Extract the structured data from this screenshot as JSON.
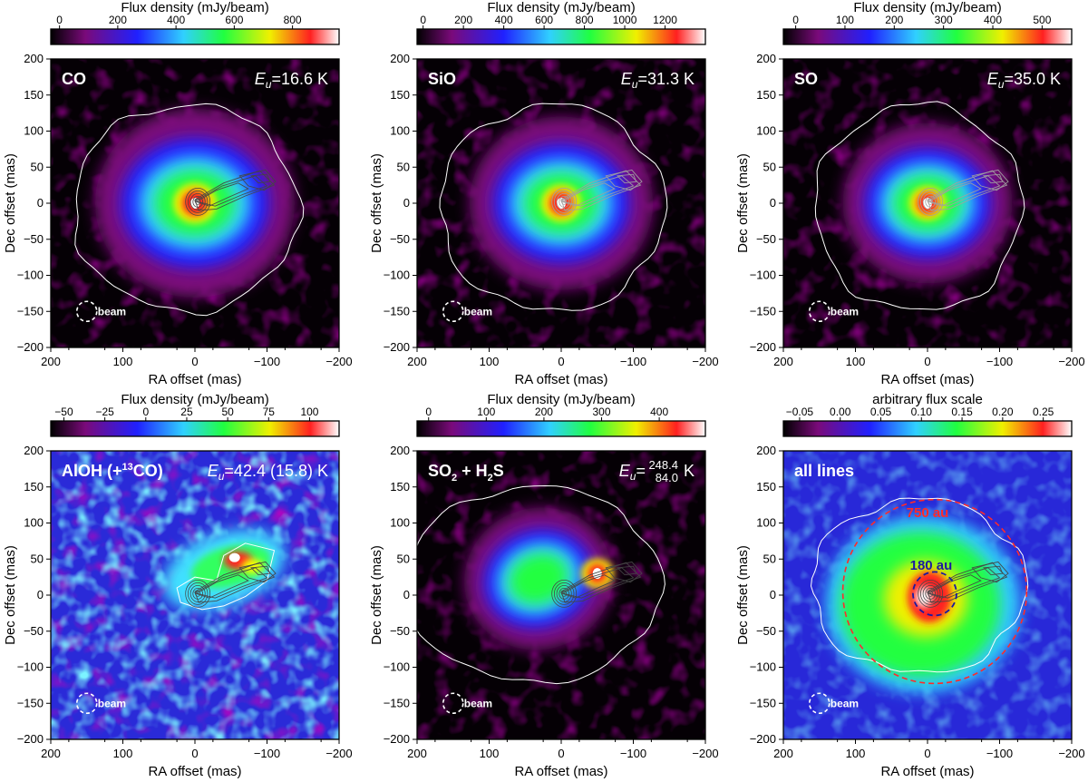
{
  "chart_data": [
    {
      "type": "heatmap",
      "title": "CO",
      "energy": "=16.6 K",
      "colorbar_label": "Flux density (mJy/beam)",
      "colorbar_ticks": [
        "0",
        "200",
        "400",
        "600",
        "800"
      ],
      "colorbar_values": [
        0,
        200,
        400,
        600,
        800
      ],
      "colorbar_range": [
        -30,
        960
      ],
      "xlabel": "RA offset (mas)",
      "ylabel": "Dec offset (mas)",
      "xlim": [
        200,
        -200
      ],
      "ylim": [
        -200,
        200
      ],
      "xticks": [
        "200",
        "100",
        "0",
        "−100",
        "−200"
      ],
      "yticks": [
        "200",
        "150",
        "100",
        "50",
        "0",
        "−50",
        "−100",
        "−150",
        "−200"
      ],
      "beam_label": "beam"
    },
    {
      "type": "heatmap",
      "title": "SiO",
      "energy": "=31.3 K",
      "colorbar_label": "Flux density (mJy/beam)",
      "colorbar_ticks": [
        "0",
        "200",
        "400",
        "600",
        "800",
        "1000",
        "1200"
      ],
      "colorbar_values": [
        0,
        200,
        400,
        600,
        800,
        1000,
        1200
      ],
      "colorbar_range": [
        -30,
        1400
      ],
      "xlabel": "RA offset (mas)",
      "ylabel": "Dec offset (mas)",
      "xlim": [
        200,
        -200
      ],
      "ylim": [
        -200,
        200
      ],
      "xticks": [
        "200",
        "100",
        "0",
        "−100",
        "−200"
      ],
      "yticks": [
        "200",
        "150",
        "100",
        "50",
        "0",
        "−50",
        "−100",
        "−150",
        "−200"
      ],
      "beam_label": "beam"
    },
    {
      "type": "heatmap",
      "title": "SO",
      "energy": "=35.0 K",
      "colorbar_label": "Flux density (mJy/beam)",
      "colorbar_ticks": [
        "0",
        "100",
        "200",
        "300",
        "400",
        "500"
      ],
      "colorbar_values": [
        0,
        100,
        200,
        300,
        400,
        500
      ],
      "colorbar_range": [
        -25,
        560
      ],
      "xlabel": "RA offset (mas)",
      "ylabel": "Dec offset (mas)",
      "xlim": [
        200,
        -200
      ],
      "ylim": [
        -200,
        200
      ],
      "xticks": [
        "200",
        "100",
        "0",
        "−100",
        "−200"
      ],
      "yticks": [
        "200",
        "150",
        "100",
        "50",
        "0",
        "−50",
        "−100",
        "−150",
        "−200"
      ],
      "beam_label": "beam"
    },
    {
      "type": "heatmap",
      "title": "AlOH (+",
      "title_sup": "13",
      "title_tail": "CO)",
      "energy": "=42.4 (15.8) K",
      "colorbar_label": "Flux density (mJy/beam)",
      "colorbar_ticks": [
        "−50",
        "−25",
        "0",
        "25",
        "50",
        "75",
        "100"
      ],
      "colorbar_values": [
        -50,
        -25,
        0,
        25,
        50,
        75,
        100
      ],
      "colorbar_range": [
        -58,
        118
      ],
      "xlabel": "RA offset (mas)",
      "ylabel": "Dec offset (mas)",
      "xlim": [
        200,
        -200
      ],
      "ylim": [
        -200,
        200
      ],
      "xticks": [
        "200",
        "100",
        "0",
        "−100",
        "−200"
      ],
      "yticks": [
        "200",
        "150",
        "100",
        "50",
        "0",
        "−50",
        "−100",
        "−150",
        "−200"
      ],
      "beam_label": "beam"
    },
    {
      "type": "heatmap",
      "title": "SO",
      "title_sub": "2",
      "title_tail": " + H",
      "title_sub2": "2",
      "title_tail2": "S",
      "energy": "=",
      "energy_top": "248.4",
      "energy_bottom": "84.0",
      "energy_unit": " K",
      "colorbar_label": "Flux density (mJy/beam)",
      "colorbar_ticks": [
        "0",
        "100",
        "200",
        "300",
        "400"
      ],
      "colorbar_values": [
        0,
        100,
        200,
        300,
        400
      ],
      "colorbar_range": [
        -20,
        480
      ],
      "xlabel": "RA offset (mas)",
      "ylabel": "Dec offset (mas)",
      "xlim": [
        200,
        -200
      ],
      "ylim": [
        -200,
        200
      ],
      "xticks": [
        "200",
        "100",
        "0",
        "−100",
        "−200"
      ],
      "yticks": [
        "200",
        "150",
        "100",
        "50",
        "0",
        "−50",
        "−100",
        "−150",
        "−200"
      ],
      "beam_label": "beam"
    },
    {
      "type": "heatmap",
      "title": "all lines",
      "colorbar_label": "arbitrary flux scale",
      "colorbar_ticks": [
        "−0.05",
        "0.00",
        "0.05",
        "0.10",
        "0.15",
        "0.20",
        "0.25"
      ],
      "colorbar_values": [
        -0.05,
        0.0,
        0.05,
        0.1,
        0.15,
        0.2,
        0.25
      ],
      "colorbar_range": [
        -0.07,
        0.285
      ],
      "xlabel": "RA offset (mas)",
      "ylabel": "Dec offset (mas)",
      "xlim": [
        200,
        -200
      ],
      "ylim": [
        -200,
        200
      ],
      "xticks": [
        "200",
        "100",
        "0",
        "−100",
        "−200"
      ],
      "yticks": [
        "200",
        "150",
        "100",
        "50",
        "0",
        "−50",
        "−100",
        "−150",
        "−200"
      ],
      "beam_label": "beam",
      "annotations": [
        {
          "text": "750 au",
          "color": "#ff2a2a"
        },
        {
          "text": "180 au",
          "color": "#1a1aa0"
        }
      ]
    }
  ],
  "colors": {
    "colormap": [
      "#000000",
      "#7a0a7a",
      "#2020ff",
      "#30d0ff",
      "#20ff40",
      "#f0f000",
      "#ff2020",
      "#ffffff"
    ],
    "contour_outer": "#ffffff",
    "contour_inner": "#444444",
    "circle_large": "#ff2a2a",
    "circle_small": "#1a1aa0"
  }
}
